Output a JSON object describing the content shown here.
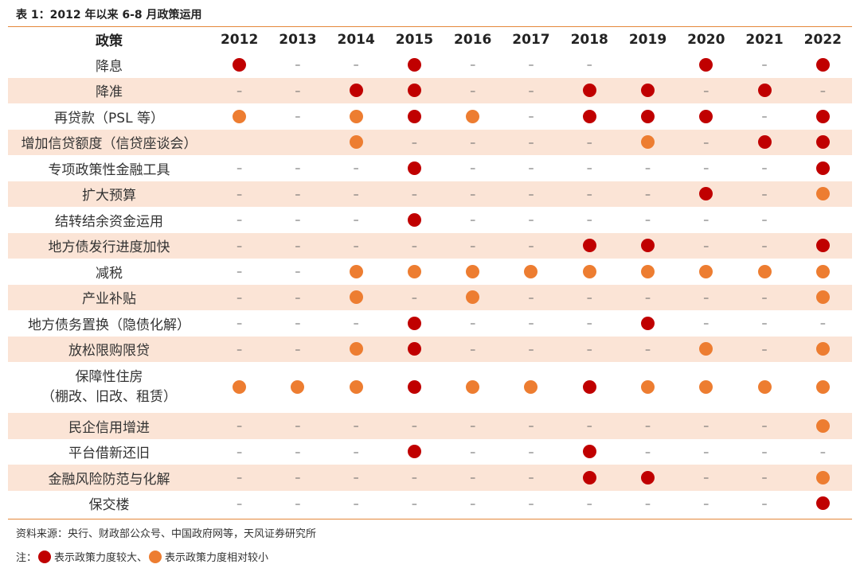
{
  "title": "表 1：2012 年以来 6-8 月政策运用",
  "header": {
    "policy": "政策",
    "years": [
      "2012",
      "2013",
      "2014",
      "2015",
      "2016",
      "2017",
      "2018",
      "2019",
      "2020",
      "2021",
      "2022"
    ]
  },
  "legend_symbols": {
    "big": "red-dot-icon",
    "small": "orange-dot-icon",
    "none": "–"
  },
  "colors": {
    "big": "#c00000",
    "small": "#ed7d31",
    "shade": "#fbe4d6",
    "rule": "#e4873a"
  },
  "rows": [
    {
      "label": "降息",
      "marks": [
        "big",
        "none",
        "none",
        "big",
        "none",
        "none",
        "none",
        "",
        "big",
        "none",
        "big"
      ]
    },
    {
      "label": "降准",
      "marks": [
        "none",
        "none",
        "big",
        "big",
        "none",
        "none",
        "big",
        "big",
        "none",
        "big",
        "none"
      ]
    },
    {
      "label": "再贷款（PSL 等）",
      "marks": [
        "small",
        "none",
        "small",
        "big",
        "small",
        "none",
        "big",
        "big",
        "big",
        "none",
        "big"
      ]
    },
    {
      "label": "增加信贷额度（信贷座谈会）",
      "marks": [
        "",
        "",
        "small",
        "none",
        "none",
        "none",
        "none",
        "small",
        "none",
        "big",
        "big"
      ]
    },
    {
      "label": "专项政策性金融工具",
      "marks": [
        "none",
        "none",
        "none",
        "big",
        "none",
        "none",
        "none",
        "none",
        "none",
        "none",
        "big"
      ]
    },
    {
      "label": "扩大预算",
      "marks": [
        "none",
        "none",
        "none",
        "none",
        "none",
        "none",
        "none",
        "none",
        "big",
        "none",
        "small"
      ]
    },
    {
      "label": "结转结余资金运用",
      "marks": [
        "none",
        "none",
        "none",
        "big",
        "none",
        "none",
        "none",
        "none",
        "none",
        "none",
        ""
      ]
    },
    {
      "label": "地方债发行进度加快",
      "marks": [
        "none",
        "none",
        "none",
        "none",
        "none",
        "none",
        "big",
        "big",
        "none",
        "none",
        "big"
      ]
    },
    {
      "label": "减税",
      "marks": [
        "none",
        "none",
        "small",
        "small",
        "small",
        "small",
        "small",
        "small",
        "small",
        "small",
        "small"
      ]
    },
    {
      "label": "产业补贴",
      "marks": [
        "none",
        "none",
        "small",
        "none",
        "small",
        "none",
        "none",
        "none",
        "none",
        "none",
        "small"
      ]
    },
    {
      "label": "地方债务置换（隐债化解）",
      "marks": [
        "none",
        "none",
        "none",
        "big",
        "none",
        "none",
        "none",
        "big",
        "none",
        "none",
        "none"
      ]
    },
    {
      "label": "放松限购限贷",
      "marks": [
        "none",
        "none",
        "small",
        "big",
        "none",
        "none",
        "none",
        "none",
        "small",
        "none",
        "small"
      ]
    },
    {
      "label": "保障性住房（棚改、旧改、租赁）",
      "label_line1": "保障性住房",
      "label_line2": "（棚改、旧改、租赁）",
      "marks": [
        "small",
        "small",
        "small",
        "big",
        "small",
        "small",
        "big",
        "small",
        "small",
        "small",
        "small"
      ]
    },
    {
      "label": "民企信用增进",
      "marks": [
        "none",
        "none",
        "none",
        "none",
        "none",
        "none",
        "none",
        "none",
        "none",
        "none",
        "small"
      ]
    },
    {
      "label": "平台借新还旧",
      "marks": [
        "none",
        "none",
        "none",
        "big",
        "none",
        "none",
        "big",
        "none",
        "none",
        "none",
        "none"
      ]
    },
    {
      "label": "金融风险防范与化解",
      "marks": [
        "none",
        "none",
        "none",
        "none",
        "none",
        "none",
        "big",
        "big",
        "none",
        "none",
        "small"
      ]
    },
    {
      "label": "保交楼",
      "marks": [
        "none",
        "none",
        "none",
        "none",
        "none",
        "none",
        "none",
        "none",
        "none",
        "none",
        "big"
      ]
    }
  ],
  "source": "资料来源：央行、财政部公众号、中国政府网等，天风证券研究所",
  "note": {
    "prefix": "注：",
    "big_text": "表示政策力度较大、",
    "small_text": "表示政策力度相对较小"
  }
}
